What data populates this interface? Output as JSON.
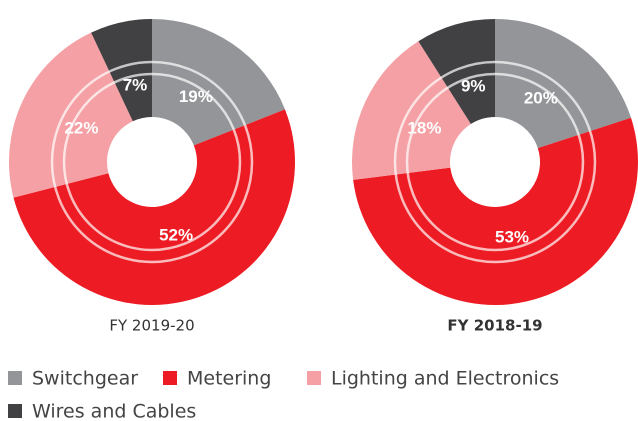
{
  "chart_data": [
    {
      "type": "pie",
      "title": "FY 2019-20",
      "categories": [
        "Switchgear",
        "Metering",
        "Lighting and Electronics",
        "Wires and Cables"
      ],
      "values": [
        19,
        52,
        22,
        7
      ],
      "value_labels": [
        "19%",
        "52%",
        "22%",
        "7%"
      ],
      "colors": [
        "#939598",
        "#ed1c24",
        "#f4a0a4",
        "#414042"
      ]
    },
    {
      "type": "pie",
      "title": "FY 2018-19",
      "categories": [
        "Switchgear",
        "Metering",
        "Lighting and Electronics",
        "Wires and Cables"
      ],
      "values": [
        20,
        53,
        18,
        9
      ],
      "value_labels": [
        "20%",
        "53%",
        "18%",
        "9%"
      ],
      "colors": [
        "#939598",
        "#ed1c24",
        "#f4a0a4",
        "#414042"
      ]
    }
  ]
}
